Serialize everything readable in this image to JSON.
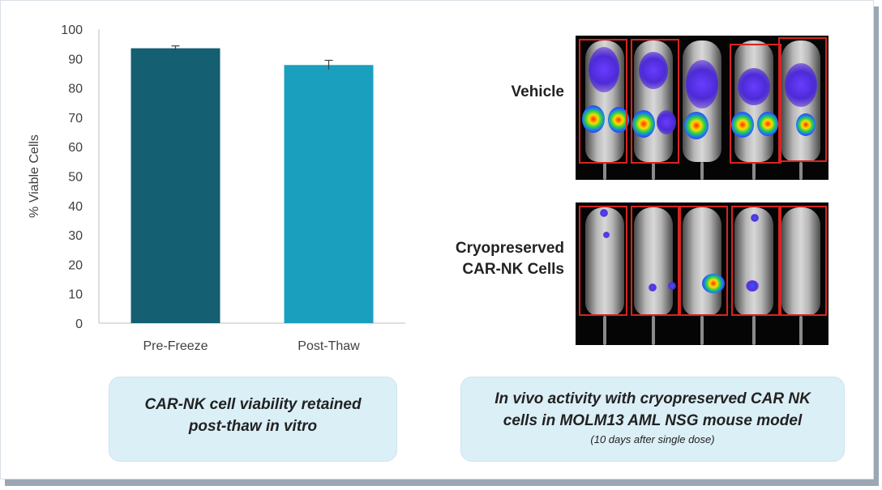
{
  "chart_data": {
    "type": "bar",
    "categories": [
      "Pre-Freeze",
      "Post-Thaw"
    ],
    "values": [
      93.5,
      87.8
    ],
    "error": [
      0.8,
      1.6
    ],
    "ylabel": "% Viable Cells",
    "xlabel": "",
    "ylim": [
      0,
      100
    ],
    "yticks": [
      0,
      10,
      20,
      30,
      40,
      50,
      60,
      70,
      80,
      90,
      100
    ],
    "grid": false,
    "colors": [
      "#155f72",
      "#1a9fbf"
    ]
  },
  "right_panel": {
    "vehicle_label": "Vehicle",
    "cryo_label_line1": "Cryopreserved",
    "cryo_label_line2": "CAR-NK Cells"
  },
  "captions": {
    "left_line1": "CAR-NK cell viability retained",
    "left_line2": "post-thaw in vitro",
    "right_line1": "In vivo activity with cryopreserved CAR NK",
    "right_line2": "cells in MOLM13 AML NSG mouse model",
    "right_sub": "(10 days after single dose)"
  }
}
